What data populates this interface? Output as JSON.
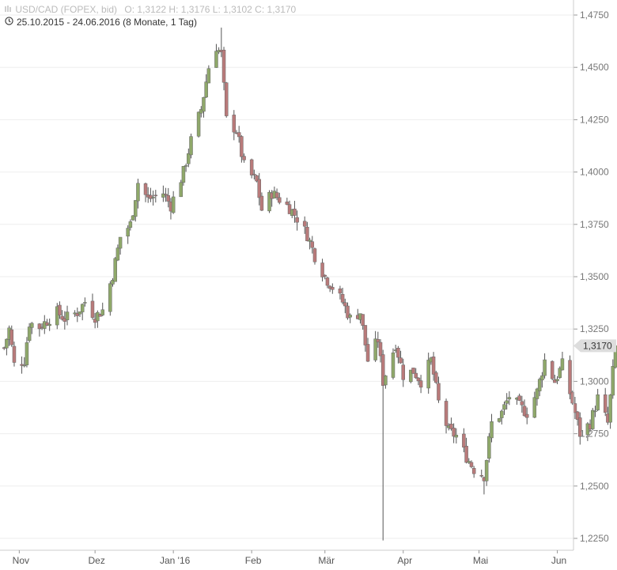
{
  "header": {
    "instrument": "USD/CAD (FOPEX, bid)",
    "ohlc": "O: 1,3122  H: 1,3176  L: 1,3102  C: 1,3170",
    "range": "25.10.2015 - 24.06.2016 (8 Monate, 1 Tag)"
  },
  "colors": {
    "up": "#8fa86a",
    "down": "#b97a7a",
    "wick": "#555555",
    "grid": "#eeeeee",
    "badge": "#dddddd"
  },
  "chart_data": {
    "type": "candlestick",
    "title": "USD/CAD (FOPEX, bid)",
    "ylim": [
      1.22,
      1.48
    ],
    "y_ticks": [
      "1,4750",
      "1,4500",
      "1,4250",
      "1,4000",
      "1,3750",
      "1,3500",
      "1,3250",
      "1,3000",
      "1,2750",
      "1,2500",
      "1,2250"
    ],
    "y_tick_values": [
      1.475,
      1.45,
      1.425,
      1.4,
      1.375,
      1.35,
      1.325,
      1.3,
      1.275,
      1.25,
      1.225
    ],
    "x_ticks": [
      "Nov",
      "Dez",
      "Jan '16",
      "Feb",
      "Mär",
      "Apr",
      "Mai",
      "Jun"
    ],
    "x_tick_dates": [
      "2015-11-01",
      "2015-12-01",
      "2016-01-01",
      "2016-02-01",
      "2016-03-01",
      "2016-04-01",
      "2016-05-01",
      "2016-06-01"
    ],
    "last_value_label": "1,3170",
    "last_value": 1.317,
    "close_path": [
      [
        "2015-10-26",
        1.316
      ],
      [
        "2015-10-28",
        1.325
      ],
      [
        "2015-10-30",
        1.308
      ],
      [
        "2015-11-03",
        1.31
      ],
      [
        "2015-11-05",
        1.328
      ],
      [
        "2015-11-09",
        1.326
      ],
      [
        "2015-11-12",
        1.329
      ],
      [
        "2015-11-16",
        1.333
      ],
      [
        "2015-11-19",
        1.33
      ],
      [
        "2015-11-24",
        1.333
      ],
      [
        "2015-11-27",
        1.338
      ],
      [
        "2015-12-01",
        1.331
      ],
      [
        "2015-12-04",
        1.334
      ],
      [
        "2015-12-08",
        1.351
      ],
      [
        "2015-12-11",
        1.369
      ],
      [
        "2015-12-15",
        1.375
      ],
      [
        "2015-12-18",
        1.395
      ],
      [
        "2015-12-22",
        1.387
      ],
      [
        "2015-12-28",
        1.39
      ],
      [
        "2015-12-31",
        1.384
      ],
      [
        "2016-01-05",
        1.4
      ],
      [
        "2016-01-08",
        1.415
      ],
      [
        "2016-01-12",
        1.43
      ],
      [
        "2016-01-15",
        1.45
      ],
      [
        "2016-01-18",
        1.46
      ],
      [
        "2016-01-20",
        1.456
      ],
      [
        "2016-01-22",
        1.425
      ],
      [
        "2016-01-26",
        1.42
      ],
      [
        "2016-01-29",
        1.403
      ],
      [
        "2016-02-03",
        1.395
      ],
      [
        "2016-02-05",
        1.382
      ],
      [
        "2016-02-09",
        1.39
      ],
      [
        "2016-02-12",
        1.387
      ],
      [
        "2016-02-16",
        1.383
      ],
      [
        "2016-02-19",
        1.378
      ],
      [
        "2016-02-23",
        1.37
      ],
      [
        "2016-02-26",
        1.36
      ],
      [
        "2016-03-01",
        1.35
      ],
      [
        "2016-03-04",
        1.345
      ],
      [
        "2016-03-08",
        1.338
      ],
      [
        "2016-03-11",
        1.33
      ],
      [
        "2016-03-15",
        1.333
      ],
      [
        "2016-03-18",
        1.31
      ],
      [
        "2016-03-22",
        1.32
      ],
      [
        "2016-03-24",
        1.3
      ],
      [
        "2016-03-29",
        1.318
      ],
      [
        "2016-04-01",
        1.303
      ],
      [
        "2016-04-05",
        1.305
      ],
      [
        "2016-04-08",
        1.3
      ],
      [
        "2016-04-12",
        1.31
      ],
      [
        "2016-04-15",
        1.29
      ],
      [
        "2016-04-19",
        1.276
      ],
      [
        "2016-04-22",
        1.274
      ],
      [
        "2016-04-26",
        1.264
      ],
      [
        "2016-04-29",
        1.258
      ],
      [
        "2016-05-03",
        1.255
      ],
      [
        "2016-05-06",
        1.28
      ],
      [
        "2016-05-10",
        1.285
      ],
      [
        "2016-05-13",
        1.293
      ],
      [
        "2016-05-17",
        1.288
      ],
      [
        "2016-05-20",
        1.285
      ],
      [
        "2016-05-24",
        1.295
      ],
      [
        "2016-05-27",
        1.31
      ],
      [
        "2016-05-31",
        1.3
      ],
      [
        "2016-06-03",
        1.308
      ],
      [
        "2016-06-07",
        1.29
      ],
      [
        "2016-06-10",
        1.275
      ],
      [
        "2016-06-14",
        1.28
      ],
      [
        "2016-06-17",
        1.292
      ],
      [
        "2016-06-21",
        1.28
      ],
      [
        "2016-06-24",
        1.317
      ]
    ],
    "extreme_lows": [
      [
        "2016-03-24",
        1.224
      ],
      [
        "2016-05-03",
        1.246
      ]
    ],
    "extreme_highs": [
      [
        "2016-01-20",
        1.469
      ]
    ]
  }
}
